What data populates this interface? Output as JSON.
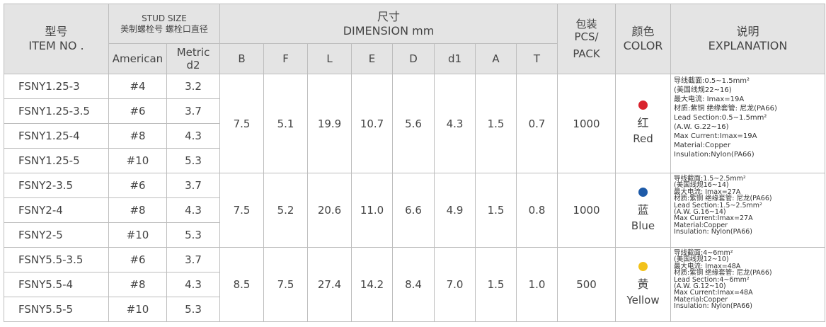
{
  "header": {
    "item_no_cn": "型号",
    "item_no_en": "ITEM NO .",
    "stud_size_title": "STUD SIZE",
    "stud_size_sub": "美制螺栓号 螺栓口直径",
    "american": "American",
    "metric_line1": "Metric",
    "metric_line2": "d2",
    "dimension_cn": "尺寸",
    "dimension_en": "DIMENSION mm",
    "dims": [
      "B",
      "F",
      "L",
      "E",
      "D",
      "d1",
      "A",
      "T"
    ],
    "pack_line1": "包装",
    "pack_line2": "PCS/",
    "pack_line3": "PACK",
    "color_cn": "颜色",
    "color_en": "COLOR",
    "expl_cn": "说明",
    "expl_en": "EXPLANATION"
  },
  "groups": [
    {
      "rows": [
        {
          "item": "FSNY1.25-3",
          "american": "#4",
          "metric": "3.2"
        },
        {
          "item": "FSNY1.25-3.5",
          "american": "#6",
          "metric": "3.7"
        },
        {
          "item": "FSNY1.25-4",
          "american": "#8",
          "metric": "4.3"
        },
        {
          "item": "FSNY1.25-5",
          "american": "#10",
          "metric": "5.3"
        }
      ],
      "dims": [
        "7.5",
        "5.1",
        "19.9",
        "10.7",
        "5.6",
        "4.3",
        "1.5",
        "0.7"
      ],
      "pack": "1000",
      "color_hex": "#d9232d",
      "color_cn": "红",
      "color_en": "Red",
      "explanation": [
        "导线截面:0.5~1.5mm²",
        "(美国线规22~16)",
        "最大电流: Imax=19A",
        "材质:紫铜 绝缘套管: 尼龙(PA66)",
        "Lead Section:0.5~1.5mm²",
        "(A.W. G.22~16)",
        "Max Current:Imax=19A",
        "Material:Copper",
        "Insulation:Nylon(PA66)"
      ]
    },
    {
      "rows": [
        {
          "item": "FSNY2-3.5",
          "american": "#6",
          "metric": "3.7"
        },
        {
          "item": "FSNY2-4",
          "american": "#8",
          "metric": "4.3"
        },
        {
          "item": "FSNY2-5",
          "american": "#10",
          "metric": "5.3"
        }
      ],
      "dims": [
        "7.5",
        "5.2",
        "20.6",
        "11.0",
        "6.6",
        "4.9",
        "1.5",
        "0.8"
      ],
      "pack": "1000",
      "color_hex": "#1d5aa8",
      "color_cn": "蓝",
      "color_en": "Blue",
      "explanation": [
        "导线截面:1.5~2.5mm²",
        "(美国线规16~14)",
        "最大电流: Imax=27A",
        "材质:紫铜 绝缘套管: 尼龙(PA66)",
        "Lead Section:1.5~2.5mm²",
        "(A.W. G.16~14)",
        "Max Current:Imax=27A",
        "Material:Copper",
        "Insulation: Nylon(PA66)"
      ]
    },
    {
      "rows": [
        {
          "item": "FSNY5.5-3.5",
          "american": "#6",
          "metric": "3.7"
        },
        {
          "item": "FSNY5.5-4",
          "american": "#8",
          "metric": "4.3"
        },
        {
          "item": "FSNY5.5-5",
          "american": "#10",
          "metric": "5.3"
        }
      ],
      "dims": [
        "8.5",
        "7.5",
        "27.4",
        "14.2",
        "8.4",
        "7.0",
        "1.5",
        "1.0"
      ],
      "pack": "500",
      "color_hex": "#f2c21b",
      "color_cn": "黄",
      "color_en": "Yellow",
      "explanation": [
        "导线截面:4~6mm²",
        "(美国线规12~10)",
        "最大电流: Imax=48A",
        "材质:紫铜 绝缘套管: 尼龙(PA66)",
        "Lead Section:4~6mm²",
        "(A.W. G.12~10)",
        "Max Current:Imax=48A",
        "Material:Copper",
        "Insulation: Nylon(PA66)"
      ]
    }
  ]
}
